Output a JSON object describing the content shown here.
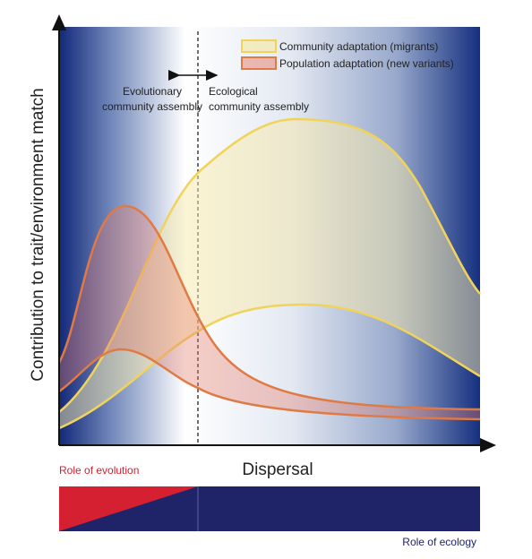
{
  "y_axis_label": "Contribution to trait/environment match",
  "x_axis_label": "Dispersal",
  "legend": [
    "Community adaptation (migrants)",
    "Population adaptation (new variants)"
  ],
  "left_region": [
    "Evolutionary",
    "community assembly"
  ],
  "right_region": [
    "Ecological",
    "community assembly"
  ],
  "bottom_bar": {
    "left_label": "Role of evolution",
    "right_label": "Role of ecology"
  }
}
